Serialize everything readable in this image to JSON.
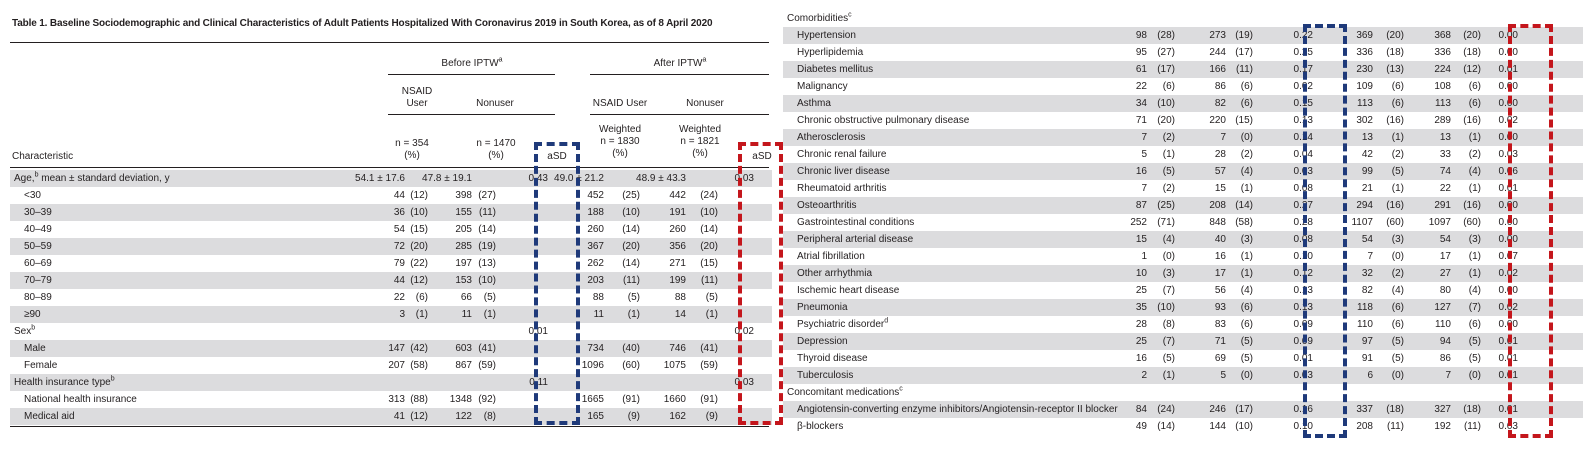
{
  "table": {
    "title": "Table 1.   Baseline Sociodemographic and Clinical Characteristics of Adult Patients Hospitalized With Coronavirus 2019 in South Korea, as of 8 April 2020",
    "header": {
      "before_iptw": "Before IPTW",
      "after_iptw": "After IPTW",
      "iptw_sup": "a",
      "nsaid_user_l1": "NSAID",
      "nsaid_user_l2": "User",
      "nonuser": "Nonuser",
      "nsaid_user_after": "NSAID User",
      "nonuser_after": "Nonuser",
      "n_user": "n = 354",
      "n_nonuser": "n = 1470",
      "pct": "(%)",
      "weighted": "Weighted",
      "n_user_w": "n = 1830",
      "n_nonuser_w": "n = 1821",
      "asd": "aSD",
      "characteristic": "Characteristic"
    },
    "left_rows": [
      {
        "label": "Age,",
        "sup": "b",
        "suffix": " mean ± standard deviation, y",
        "indent": false,
        "shade": true,
        "v": [
          "54.1 ± 17.6",
          "",
          "47.8 ± 19.1",
          "",
          "0.43",
          "49.0 ± 21.2",
          "",
          "48.9 ± 43.3",
          "",
          "0.03"
        ]
      },
      {
        "label": "<30",
        "indent": true,
        "shade": false,
        "v": [
          "44",
          "(12)",
          "398",
          "(27)",
          "",
          "452",
          "(25)",
          "442",
          "(24)",
          ""
        ]
      },
      {
        "label": "30–39",
        "indent": true,
        "shade": true,
        "v": [
          "36",
          "(10)",
          "155",
          "(11)",
          "",
          "188",
          "(10)",
          "191",
          "(10)",
          ""
        ]
      },
      {
        "label": "40–49",
        "indent": true,
        "shade": false,
        "v": [
          "54",
          "(15)",
          "205",
          "(14)",
          "",
          "260",
          "(14)",
          "260",
          "(14)",
          ""
        ]
      },
      {
        "label": "50–59",
        "indent": true,
        "shade": true,
        "v": [
          "72",
          "(20)",
          "285",
          "(19)",
          "",
          "367",
          "(20)",
          "356",
          "(20)",
          ""
        ]
      },
      {
        "label": "60–69",
        "indent": true,
        "shade": false,
        "v": [
          "79",
          "(22)",
          "197",
          "(13)",
          "",
          "262",
          "(14)",
          "271",
          "(15)",
          ""
        ]
      },
      {
        "label": "70–79",
        "indent": true,
        "shade": true,
        "v": [
          "44",
          "(12)",
          "153",
          "(10)",
          "",
          "203",
          "(11)",
          "199",
          "(11)",
          ""
        ]
      },
      {
        "label": "80–89",
        "indent": true,
        "shade": false,
        "v": [
          "22",
          "(6)",
          "66",
          "(5)",
          "",
          "88",
          "(5)",
          "88",
          "(5)",
          ""
        ]
      },
      {
        "label": "≥90",
        "indent": true,
        "shade": true,
        "v": [
          "3",
          "(1)",
          "11",
          "(1)",
          "",
          "11",
          "(1)",
          "14",
          "(1)",
          ""
        ]
      },
      {
        "label": "Sex",
        "sup": "b",
        "suffix": "",
        "indent": false,
        "shade": false,
        "v": [
          "",
          "",
          "",
          "",
          "0.01",
          "",
          "",
          "",
          "",
          "0.02"
        ]
      },
      {
        "label": "Male",
        "indent": true,
        "shade": true,
        "v": [
          "147",
          "(42)",
          "603",
          "(41)",
          "",
          "734",
          "(40)",
          "746",
          "(41)",
          ""
        ]
      },
      {
        "label": "Female",
        "indent": true,
        "shade": false,
        "v": [
          "207",
          "(58)",
          "867",
          "(59)",
          "",
          "1096",
          "(60)",
          "1075",
          "(59)",
          ""
        ]
      },
      {
        "label": "Health insurance type",
        "sup": "b",
        "suffix": "",
        "indent": false,
        "shade": true,
        "v": [
          "",
          "",
          "",
          "",
          "0.11",
          "",
          "",
          "",
          "",
          "0.03"
        ]
      },
      {
        "label": "National health insurance",
        "indent": true,
        "shade": false,
        "v": [
          "313",
          "(88)",
          "1348",
          "(92)",
          "",
          "1665",
          "(91)",
          "1660",
          "(91)",
          ""
        ]
      },
      {
        "label": "Medical aid",
        "indent": true,
        "shade": true,
        "v": [
          "41",
          "(12)",
          "122",
          "(8)",
          "",
          "165",
          "(9)",
          "162",
          "(9)",
          ""
        ]
      }
    ],
    "right_rows": [
      {
        "label": "Comorbidities",
        "sup": "c",
        "indent": false,
        "shade": false,
        "v": [
          "",
          "",
          "",
          "",
          "",
          "",
          "",
          "",
          "",
          ""
        ]
      },
      {
        "label": "Hypertension",
        "indent": true,
        "shade": true,
        "v": [
          "98",
          "(28)",
          "273",
          "(19)",
          "0.22",
          "369",
          "(20)",
          "368",
          "(20)",
          "0.00"
        ]
      },
      {
        "label": "Hyperlipidemia",
        "indent": true,
        "shade": false,
        "v": [
          "95",
          "(27)",
          "244",
          "(17)",
          "0.25",
          "336",
          "(18)",
          "336",
          "(18)",
          "0.00"
        ]
      },
      {
        "label": "Diabetes mellitus",
        "indent": true,
        "shade": true,
        "v": [
          "61",
          "(17)",
          "166",
          "(11)",
          "0.17",
          "230",
          "(13)",
          "224",
          "(12)",
          "0.01"
        ]
      },
      {
        "label": "Malignancy",
        "indent": true,
        "shade": false,
        "v": [
          "22",
          "(6)",
          "86",
          "(6)",
          "0.02",
          "109",
          "(6)",
          "108",
          "(6)",
          "0.00"
        ]
      },
      {
        "label": "Asthma",
        "indent": true,
        "shade": true,
        "v": [
          "34",
          "(10)",
          "82",
          "(6)",
          "0.15",
          "113",
          "(6)",
          "113",
          "(6)",
          "0.00"
        ]
      },
      {
        "label": "Chronic obstructive pulmonary disease",
        "indent": true,
        "shade": false,
        "v": [
          "71",
          "(20)",
          "220",
          "(15)",
          "0.13",
          "302",
          "(16)",
          "289",
          "(16)",
          "0.02"
        ]
      },
      {
        "label": "Atherosclerosis",
        "indent": true,
        "shade": true,
        "v": [
          "7",
          "(2)",
          "7",
          "(0)",
          "0.14",
          "13",
          "(1)",
          "13",
          "(1)",
          "0.00"
        ]
      },
      {
        "label": "Chronic renal failure",
        "indent": true,
        "shade": false,
        "v": [
          "5",
          "(1)",
          "28",
          "(2)",
          "0.04",
          "42",
          "(2)",
          "33",
          "(2)",
          "0.03"
        ]
      },
      {
        "label": "Chronic liver disease",
        "indent": true,
        "shade": true,
        "v": [
          "16",
          "(5)",
          "57",
          "(4)",
          "0.03",
          "99",
          "(5)",
          "74",
          "(4)",
          "0.06"
        ]
      },
      {
        "label": "Rheumatoid arthritis",
        "indent": true,
        "shade": false,
        "v": [
          "7",
          "(2)",
          "15",
          "(1)",
          "0.08",
          "21",
          "(1)",
          "22",
          "(1)",
          "0.01"
        ]
      },
      {
        "label": "Osteoarthritis",
        "indent": true,
        "shade": true,
        "v": [
          "87",
          "(25)",
          "208",
          "(14)",
          "0.27",
          "294",
          "(16)",
          "291",
          "(16)",
          "0.00"
        ]
      },
      {
        "label": "Gastrointestinal conditions",
        "indent": true,
        "shade": false,
        "v": [
          "252",
          "(71)",
          "848",
          "(58)",
          "0.28",
          "1107",
          "(60)",
          "1097",
          "(60)",
          "0.00"
        ]
      },
      {
        "label": "Peripheral arterial disease",
        "indent": true,
        "shade": true,
        "v": [
          "15",
          "(4)",
          "40",
          "(3)",
          "0.08",
          "54",
          "(3)",
          "54",
          "(3)",
          "0.00"
        ]
      },
      {
        "label": "Atrial fibrillation",
        "indent": true,
        "shade": false,
        "v": [
          "1",
          "(0)",
          "16",
          "(1)",
          "0.10",
          "7",
          "(0)",
          "17",
          "(1)",
          "0.07"
        ]
      },
      {
        "label": "Other arrhythmia",
        "indent": true,
        "shade": true,
        "v": [
          "10",
          "(3)",
          "17",
          "(1)",
          "0.12",
          "32",
          "(2)",
          "27",
          "(1)",
          "0.02"
        ]
      },
      {
        "label": "Ischemic heart disease",
        "indent": true,
        "shade": false,
        "v": [
          "25",
          "(7)",
          "56",
          "(4)",
          "0.13",
          "82",
          "(4)",
          "80",
          "(4)",
          "0.00"
        ]
      },
      {
        "label": "Pneumonia",
        "indent": true,
        "shade": true,
        "v": [
          "35",
          "(10)",
          "93",
          "(6)",
          "0.13",
          "118",
          "(6)",
          "127",
          "(7)",
          "0.02"
        ]
      },
      {
        "label": "Psychiatric disorder",
        "sup": "d",
        "indent": true,
        "shade": false,
        "v": [
          "28",
          "(8)",
          "83",
          "(6)",
          "0.09",
          "110",
          "(6)",
          "110",
          "(6)",
          "0.00"
        ]
      },
      {
        "label": "Depression",
        "indent": true,
        "shade": true,
        "v": [
          "25",
          "(7)",
          "71",
          "(5)",
          "0.09",
          "97",
          "(5)",
          "94",
          "(5)",
          "0.01"
        ]
      },
      {
        "label": "Thyroid disease",
        "indent": true,
        "shade": false,
        "v": [
          "16",
          "(5)",
          "69",
          "(5)",
          "0.01",
          "91",
          "(5)",
          "86",
          "(5)",
          "0.01"
        ]
      },
      {
        "label": "Tuberculosis",
        "indent": true,
        "shade": true,
        "v": [
          "2",
          "(1)",
          "5",
          "(0)",
          "0.03",
          "6",
          "(0)",
          "7",
          "(0)",
          "0.01"
        ]
      },
      {
        "label": "Concomitant medications",
        "sup": "c",
        "indent": false,
        "shade": false,
        "v": [
          "",
          "",
          "",
          "",
          "",
          "",
          "",
          "",
          "",
          ""
        ]
      },
      {
        "label": "Angiotensin-converting enzyme inhibitors/Angiotensin-receptor II blocker",
        "indent": true,
        "shade": true,
        "v": [
          "84",
          "(24)",
          "246",
          "(17)",
          "0.16",
          "337",
          "(18)",
          "327",
          "(18)",
          "0.01"
        ]
      },
      {
        "label": "β-blockers",
        "indent": true,
        "shade": false,
        "v": [
          "49",
          "(14)",
          "144",
          "(10)",
          "0.10",
          "208",
          "(11)",
          "192",
          "(11)",
          "0.03"
        ]
      }
    ],
    "highlight_colors": {
      "before_asd": "#1f3a7a",
      "after_asd": "#c4161c"
    }
  }
}
